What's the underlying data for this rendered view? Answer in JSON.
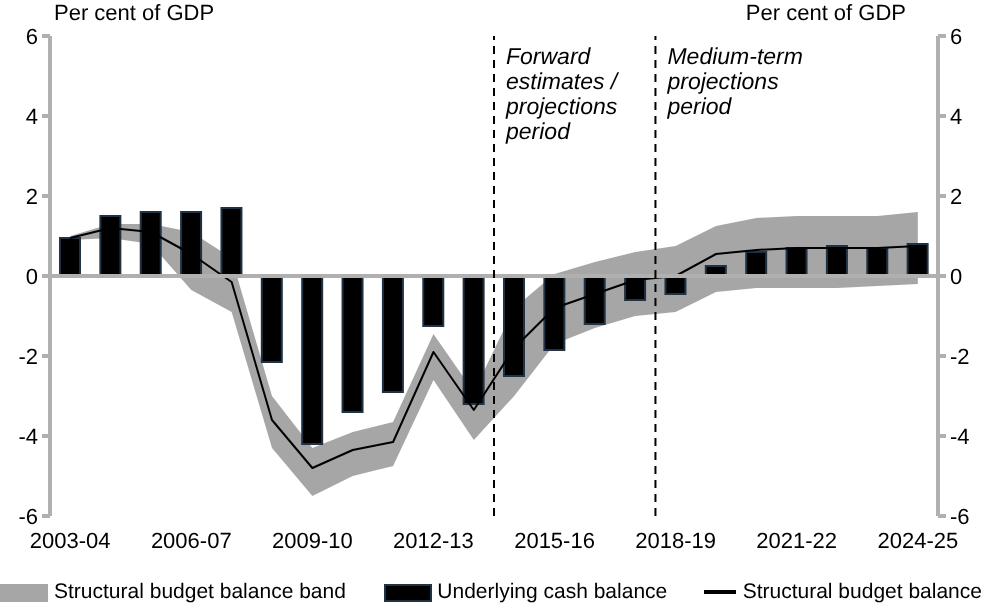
{
  "chart_data": {
    "type": "bar",
    "categories": [
      "2003-04",
      null,
      null,
      "2006-07",
      null,
      null,
      "2009-10",
      null,
      null,
      "2012-13",
      null,
      null,
      "2015-16",
      null,
      null,
      "2018-19",
      null,
      null,
      "2021-22",
      null,
      null,
      "2024-25"
    ],
    "series": [
      {
        "name": "Structural budget balance band",
        "type": "area",
        "color": "#a6a6a6",
        "values": [
          null,
          null,
          null,
          null,
          null,
          null,
          null,
          null,
          null,
          null,
          null,
          null,
          null,
          null,
          null,
          null,
          null,
          null,
          null,
          null,
          null,
          null
        ],
        "lower": [
          0.9,
          0.95,
          0.8,
          -0.35,
          -0.9,
          -4.3,
          -5.5,
          -5.0,
          -4.75,
          -2.6,
          -4.1,
          -3.0,
          -1.7,
          -1.3,
          -1.0,
          -0.9,
          -0.4,
          -0.3,
          -0.3,
          -0.3,
          -0.25,
          -0.2
        ],
        "upper": [
          1.0,
          1.3,
          1.3,
          1.1,
          0.45,
          -3.0,
          -4.3,
          -3.9,
          -3.65,
          -1.45,
          -2.9,
          -0.8,
          0.05,
          0.35,
          0.6,
          0.75,
          1.25,
          1.45,
          1.5,
          1.5,
          1.5,
          1.6
        ]
      },
      {
        "name": "Underlying cash balance",
        "color": "#000000",
        "values": [
          0.95,
          1.5,
          1.6,
          1.6,
          1.7,
          -2.15,
          -4.2,
          -3.4,
          -2.9,
          -1.25,
          -3.2,
          -2.5,
          -1.85,
          -1.2,
          -0.6,
          -0.45,
          0.25,
          0.6,
          0.7,
          0.75,
          0.7,
          0.8
        ]
      },
      {
        "name": "Structural budget balance",
        "type": "line",
        "color": "#000000",
        "values": [
          0.95,
          1.2,
          1.1,
          0.55,
          -0.15,
          -3.6,
          -4.8,
          -4.35,
          -4.15,
          -1.9,
          -3.35,
          -1.8,
          -0.8,
          -0.45,
          -0.1,
          0.0,
          0.55,
          0.65,
          0.7,
          0.7,
          0.7,
          0.75
        ]
      }
    ],
    "ylabel": "Per cent of GDP",
    "y2label": "Per cent of GDP",
    "ylim": [
      -6,
      6
    ],
    "yticks": [
      -6,
      -4,
      -2,
      0,
      2,
      4,
      6
    ],
    "y2lim": [
      -6,
      6
    ],
    "y2ticks": [
      -6,
      -4,
      -2,
      0,
      2,
      4,
      6
    ],
    "annotations": [
      "Forward estimates / projections period",
      "Medium-term projections period"
    ],
    "grid": false,
    "legend": "bottom"
  }
}
